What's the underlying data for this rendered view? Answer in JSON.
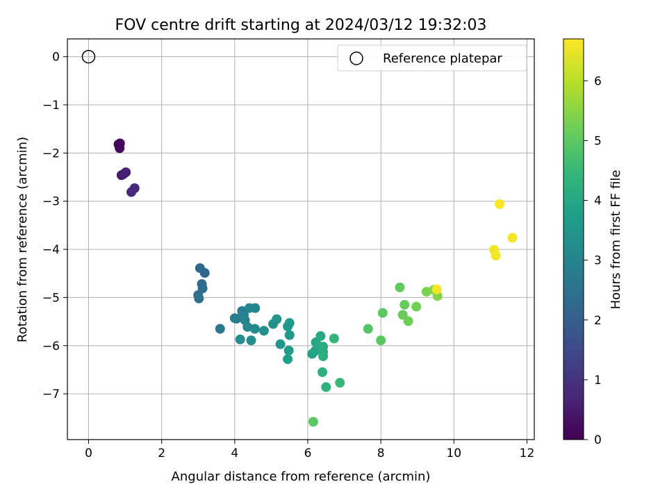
{
  "chart_data": {
    "type": "scatter",
    "title": "FOV centre drift starting at 2024/03/12 19:32:03",
    "xlabel": "Angular distance from reference (arcmin)",
    "ylabel": "Rotation from reference (arcmin)",
    "xlim": [
      -0.58,
      12.2
    ],
    "ylim": [
      -7.95,
      0.37
    ],
    "x_ticks": [
      0,
      2,
      4,
      6,
      8,
      10,
      12
    ],
    "y_ticks": [
      0,
      -1,
      -2,
      -3,
      -4,
      -5,
      -6,
      -7
    ],
    "x_tick_labels": [
      "0",
      "2",
      "4",
      "6",
      "8",
      "10",
      "12"
    ],
    "y_tick_labels": [
      "0",
      "−1",
      "−2",
      "−3",
      "−4",
      "−5",
      "−6",
      "−7"
    ],
    "grid": true,
    "legend": {
      "placement": "top-right",
      "entries": [
        "Reference platepar"
      ]
    },
    "reference_point": {
      "x": 0,
      "y": 0,
      "label": "Reference platepar"
    },
    "colorbar": {
      "label": "Hours from first FF file",
      "range": [
        0,
        6.7
      ],
      "ticks": [
        0,
        1,
        2,
        3,
        4,
        5,
        6
      ],
      "tick_labels": [
        "0",
        "1",
        "2",
        "3",
        "4",
        "5",
        "6"
      ],
      "colormap": "viridis",
      "colors": [
        "#440154",
        "#482878",
        "#3e4989",
        "#31688e",
        "#26828e",
        "#1f9e89",
        "#35b779",
        "#6ece58",
        "#b5de2b",
        "#fde725"
      ]
    },
    "points": [
      {
        "x": 0.82,
        "y": -1.82,
        "t": 0.05
      },
      {
        "x": 0.86,
        "y": -1.8,
        "t": 0.1
      },
      {
        "x": 0.85,
        "y": -1.9,
        "t": 0.15
      },
      {
        "x": 0.9,
        "y": -2.46,
        "t": 0.5
      },
      {
        "x": 0.95,
        "y": -2.44,
        "t": 0.55
      },
      {
        "x": 1.02,
        "y": -2.4,
        "t": 0.6
      },
      {
        "x": 1.17,
        "y": -2.81,
        "t": 0.75
      },
      {
        "x": 1.26,
        "y": -2.73,
        "t": 0.8
      },
      {
        "x": 3.05,
        "y": -4.39,
        "t": 2.2
      },
      {
        "x": 3.18,
        "y": -4.49,
        "t": 2.25
      },
      {
        "x": 3.1,
        "y": -4.72,
        "t": 2.3
      },
      {
        "x": 3.12,
        "y": -4.81,
        "t": 2.35
      },
      {
        "x": 3.0,
        "y": -4.95,
        "t": 2.4
      },
      {
        "x": 3.02,
        "y": -5.02,
        "t": 2.45
      },
      {
        "x": 3.6,
        "y": -5.65,
        "t": 2.65
      },
      {
        "x": 4.0,
        "y": -5.43,
        "t": 2.8
      },
      {
        "x": 4.05,
        "y": -5.44,
        "t": 2.85
      },
      {
        "x": 4.2,
        "y": -5.28,
        "t": 2.9
      },
      {
        "x": 4.25,
        "y": -5.36,
        "t": 2.95
      },
      {
        "x": 4.28,
        "y": -5.47,
        "t": 3.0
      },
      {
        "x": 4.4,
        "y": -5.22,
        "t": 3.05
      },
      {
        "x": 4.56,
        "y": -5.22,
        "t": 3.1
      },
      {
        "x": 4.35,
        "y": -5.61,
        "t": 3.15
      },
      {
        "x": 4.55,
        "y": -5.65,
        "t": 3.2
      },
      {
        "x": 4.15,
        "y": -5.87,
        "t": 3.25
      },
      {
        "x": 4.45,
        "y": -5.89,
        "t": 3.3
      },
      {
        "x": 4.8,
        "y": -5.69,
        "t": 3.35
      },
      {
        "x": 5.05,
        "y": -5.55,
        "t": 3.4
      },
      {
        "x": 5.15,
        "y": -5.45,
        "t": 3.45
      },
      {
        "x": 5.25,
        "y": -5.97,
        "t": 3.5
      },
      {
        "x": 5.45,
        "y": -5.6,
        "t": 3.55
      },
      {
        "x": 5.5,
        "y": -5.53,
        "t": 3.6
      },
      {
        "x": 5.5,
        "y": -5.78,
        "t": 3.65
      },
      {
        "x": 5.48,
        "y": -6.1,
        "t": 3.7
      },
      {
        "x": 5.45,
        "y": -6.28,
        "t": 3.75
      },
      {
        "x": 6.12,
        "y": -6.17,
        "t": 3.85
      },
      {
        "x": 6.2,
        "y": -6.11,
        "t": 3.9
      },
      {
        "x": 6.22,
        "y": -5.93,
        "t": 3.95
      },
      {
        "x": 6.28,
        "y": -6.0,
        "t": 4.0
      },
      {
        "x": 6.35,
        "y": -5.8,
        "t": 4.05
      },
      {
        "x": 6.42,
        "y": -6.02,
        "t": 4.1
      },
      {
        "x": 6.42,
        "y": -6.13,
        "t": 4.15
      },
      {
        "x": 6.42,
        "y": -6.22,
        "t": 4.2
      },
      {
        "x": 6.4,
        "y": -6.55,
        "t": 4.25
      },
      {
        "x": 6.5,
        "y": -6.86,
        "t": 4.3
      },
      {
        "x": 6.72,
        "y": -5.85,
        "t": 4.4
      },
      {
        "x": 6.88,
        "y": -6.77,
        "t": 4.5
      },
      {
        "x": 6.15,
        "y": -7.58,
        "t": 4.95
      },
      {
        "x": 7.65,
        "y": -5.65,
        "t": 4.9
      },
      {
        "x": 8.0,
        "y": -5.89,
        "t": 4.95
      },
      {
        "x": 8.05,
        "y": -5.32,
        "t": 5.0
      },
      {
        "x": 8.52,
        "y": -4.79,
        "t": 5.05
      },
      {
        "x": 8.65,
        "y": -5.15,
        "t": 5.1
      },
      {
        "x": 8.6,
        "y": -5.36,
        "t": 5.15
      },
      {
        "x": 8.75,
        "y": -5.49,
        "t": 5.2
      },
      {
        "x": 8.97,
        "y": -5.19,
        "t": 5.25
      },
      {
        "x": 9.25,
        "y": -4.88,
        "t": 5.35
      },
      {
        "x": 9.45,
        "y": -4.84,
        "t": 5.4
      },
      {
        "x": 9.55,
        "y": -4.97,
        "t": 5.45
      },
      {
        "x": 9.53,
        "y": -4.83,
        "t": 6.6
      },
      {
        "x": 11.1,
        "y": -4.01,
        "t": 6.55
      },
      {
        "x": 11.15,
        "y": -4.13,
        "t": 6.6
      },
      {
        "x": 11.25,
        "y": -3.06,
        "t": 6.65
      },
      {
        "x": 11.6,
        "y": -3.76,
        "t": 6.6
      }
    ]
  }
}
